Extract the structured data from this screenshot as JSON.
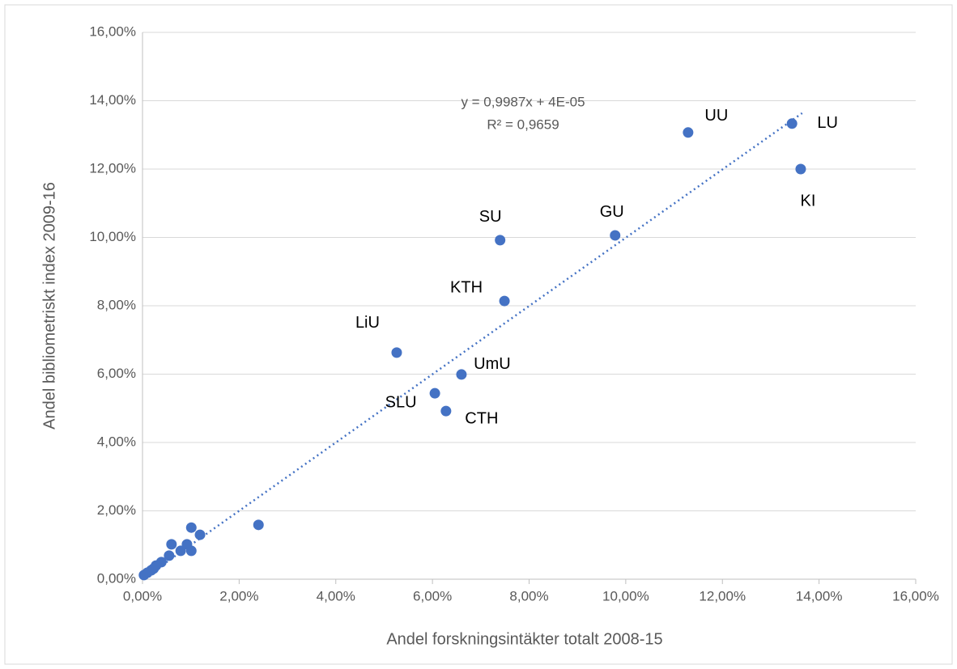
{
  "chart_data": {
    "type": "scatter",
    "x_label": "Andel forskningsintäkter totalt 2008-15",
    "y_label": "Andel bibliometriskt index 2009-16",
    "color": "#4472c4",
    "grid": true,
    "xlim": [
      0,
      16
    ],
    "ylim": [
      0,
      16
    ],
    "xticks": [
      {
        "value": 0,
        "label": "0,00%"
      },
      {
        "value": 2,
        "label": "2,00%"
      },
      {
        "value": 4,
        "label": "4,00%"
      },
      {
        "value": 6,
        "label": "6,00%"
      },
      {
        "value": 8,
        "label": "8,00%"
      },
      {
        "value": 10,
        "label": "10,00%"
      },
      {
        "value": 12,
        "label": "12,00%"
      },
      {
        "value": 14,
        "label": "14,00%"
      },
      {
        "value": 16,
        "label": "16,00%"
      }
    ],
    "yticks": [
      {
        "value": 0,
        "label": "0,00%"
      },
      {
        "value": 2,
        "label": "2,00%"
      },
      {
        "value": 4,
        "label": "4,00%"
      },
      {
        "value": 6,
        "label": "6,00%"
      },
      {
        "value": 8,
        "label": "8,00%"
      },
      {
        "value": 10,
        "label": "10,00%"
      },
      {
        "value": 12,
        "label": "12,00%"
      },
      {
        "value": 14,
        "label": "14,00%"
      },
      {
        "value": 16,
        "label": "16,00%"
      }
    ],
    "x": [
      11.29,
      13.44,
      13.62,
      7.4,
      9.78,
      7.49,
      5.26,
      6.6,
      6.05,
      6.28,
      2.4,
      1.01,
      1.19,
      0.6,
      0.92,
      0.55,
      0.79,
      1.01,
      0.39,
      0.28,
      0.18,
      0.1,
      0.03,
      0.23
    ],
    "values": [
      13.07,
      13.33,
      12.0,
      9.92,
      10.06,
      8.14,
      6.63,
      5.99,
      5.44,
      4.92,
      1.59,
      1.51,
      1.3,
      1.02,
      1.02,
      0.69,
      0.83,
      0.83,
      0.5,
      0.4,
      0.26,
      0.19,
      0.12,
      0.31
    ],
    "point_labels": [
      "UU",
      "LU",
      "KI",
      "SU",
      "GU",
      "KTH",
      "LiU",
      "UmU",
      "SLU",
      "CTH",
      null,
      null,
      null,
      null,
      null,
      null,
      null,
      null,
      null,
      null,
      null,
      null,
      null,
      null
    ],
    "trendline": {
      "slope": 0.9987,
      "intercept": 0.004,
      "x_range": [
        0,
        13.65
      ],
      "equation": "y = 0,9987x + 4E-05",
      "r2": "R² = 0,9659"
    }
  }
}
